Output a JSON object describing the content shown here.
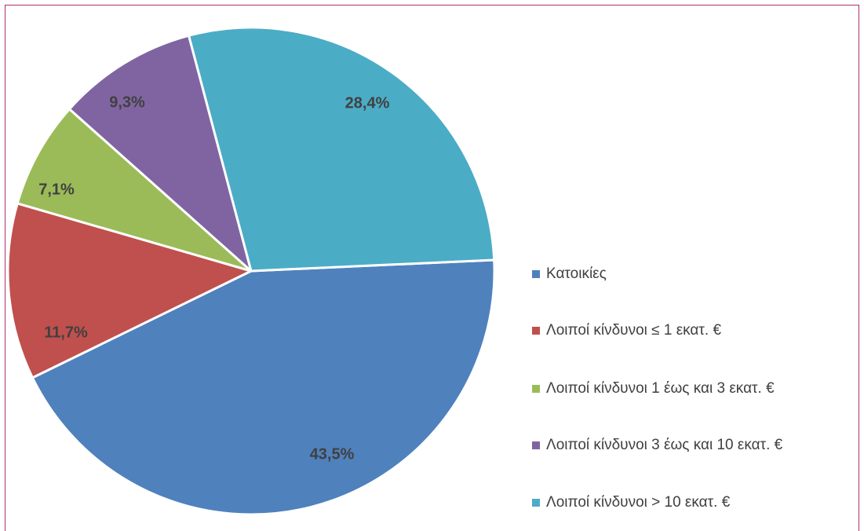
{
  "chart_data": {
    "type": "pie",
    "title": "",
    "slices": [
      {
        "name": "Κατοικίες",
        "value": 43.5,
        "label": "43,5%",
        "color": "#4F81BD"
      },
      {
        "name": "Λοιποί κίνδυνοι ≤ 1 εκατ. €",
        "value": 11.7,
        "label": "11,7%",
        "color": "#C0504D"
      },
      {
        "name": "Λοιποί κίνδυνοι 1 έως και 3 εκατ. €",
        "value": 7.1,
        "label": "7,1%",
        "color": "#9BBB59"
      },
      {
        "name": "Λοιποί κίνδυνοι 3 έως και 10 εκατ. €",
        "value": 9.3,
        "label": "9,3%",
        "color": "#8064A2"
      },
      {
        "name": "Λοιποί κίνδυνοι > 10 εκατ. €",
        "value": 28.4,
        "label": "28,4%",
        "color": "#4BACC6"
      }
    ],
    "legend_position": "right"
  }
}
